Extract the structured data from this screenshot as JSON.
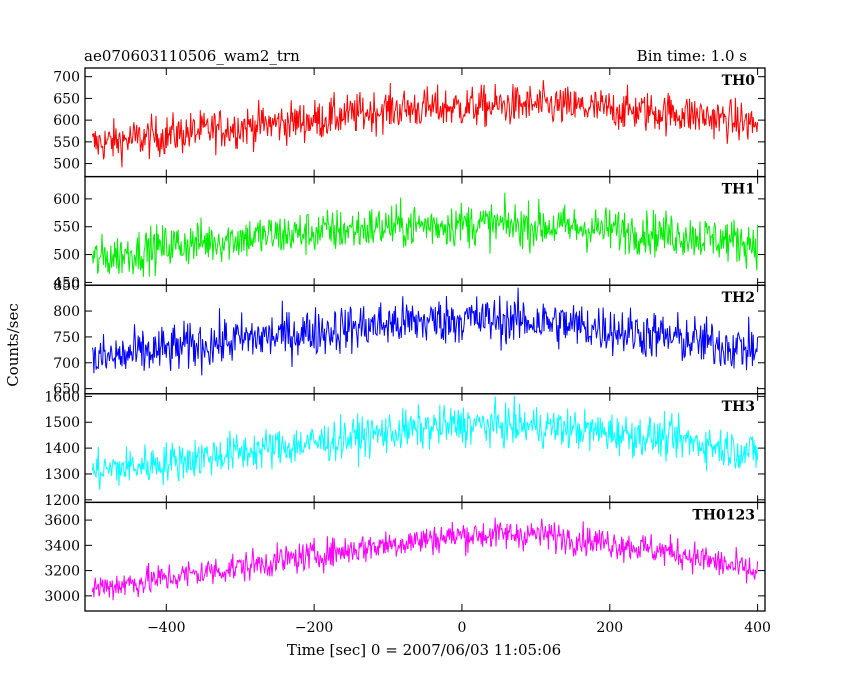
{
  "header": {
    "title": "ae070603110506_wam2_trn",
    "bin_time": "Bin time: 1.0 s"
  },
  "chart_data": {
    "type": "line",
    "xlabel": "Time [sec] 0 = 2007/06/03 11:05:06",
    "ylabel": "Counts/sec",
    "xlim": [
      -510,
      410
    ],
    "x_ticks": [
      -400,
      -200,
      0,
      200,
      400
    ],
    "x_tick_labels": [
      "−400",
      "−200",
      "0",
      "200",
      "400"
    ],
    "series": [
      {
        "name": "TH0",
        "color": "#ff0000",
        "ylim": [
          470,
          720
        ],
        "y_ticks": [
          500,
          550,
          600,
          650,
          700
        ],
        "trend": [
          [
            -500,
            545
          ],
          [
            -400,
            565
          ],
          [
            -300,
            585
          ],
          [
            -200,
            600
          ],
          [
            -100,
            625
          ],
          [
            0,
            630
          ],
          [
            100,
            635
          ],
          [
            200,
            625
          ],
          [
            300,
            615
          ],
          [
            400,
            590
          ]
        ],
        "noise_amplitude": 45
      },
      {
        "name": "TH1",
        "color": "#00ee00",
        "ylim": [
          445,
          640
        ],
        "y_ticks": [
          450,
          500,
          550,
          600
        ],
        "trend": [
          [
            -500,
            490
          ],
          [
            -400,
            515
          ],
          [
            -300,
            530
          ],
          [
            -200,
            540
          ],
          [
            -100,
            550
          ],
          [
            0,
            555
          ],
          [
            100,
            552
          ],
          [
            200,
            545
          ],
          [
            300,
            535
          ],
          [
            400,
            520
          ]
        ],
        "noise_amplitude": 38
      },
      {
        "name": "TH2",
        "color": "#0000ff",
        "ylim": [
          640,
          850
        ],
        "y_ticks": [
          650,
          700,
          750,
          800,
          850
        ],
        "trend": [
          [
            -500,
            705
          ],
          [
            -400,
            725
          ],
          [
            -300,
            745
          ],
          [
            -200,
            760
          ],
          [
            -100,
            775
          ],
          [
            0,
            785
          ],
          [
            100,
            780
          ],
          [
            200,
            765
          ],
          [
            300,
            745
          ],
          [
            400,
            725
          ]
        ],
        "noise_amplitude": 45
      },
      {
        "name": "TH3",
        "color": "#00ffff",
        "ylim": [
          1190,
          1610
        ],
        "y_ticks": [
          1200,
          1300,
          1400,
          1500,
          1600
        ],
        "trend": [
          [
            -500,
            1310
          ],
          [
            -400,
            1345
          ],
          [
            -300,
            1385
          ],
          [
            -200,
            1420
          ],
          [
            -100,
            1460
          ],
          [
            0,
            1490
          ],
          [
            100,
            1485
          ],
          [
            200,
            1460
          ],
          [
            300,
            1430
          ],
          [
            400,
            1380
          ]
        ],
        "noise_amplitude": 75
      },
      {
        "name": "TH0123",
        "color": "#ff00ff",
        "ylim": [
          2880,
          3740
        ],
        "y_ticks": [
          3000,
          3200,
          3400,
          3600
        ],
        "trend": [
          [
            -500,
            3060
          ],
          [
            -400,
            3140
          ],
          [
            -300,
            3230
          ],
          [
            -200,
            3320
          ],
          [
            -100,
            3410
          ],
          [
            0,
            3480
          ],
          [
            100,
            3490
          ],
          [
            200,
            3420
          ],
          [
            300,
            3330
          ],
          [
            400,
            3180
          ]
        ],
        "noise_amplitude": 115
      }
    ]
  }
}
